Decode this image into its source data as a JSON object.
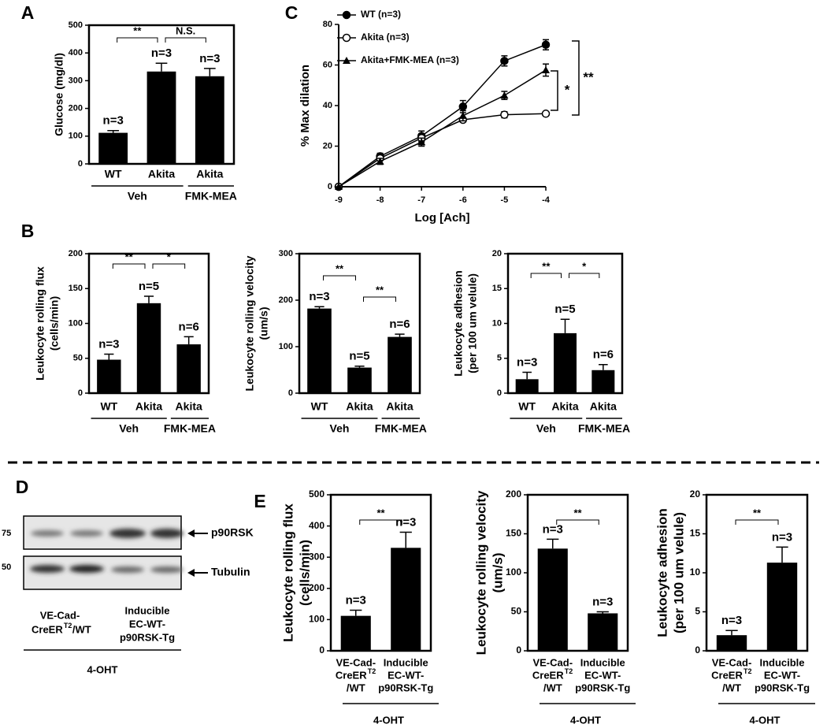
{
  "panels": [
    "A",
    "B",
    "C",
    "D",
    "E"
  ],
  "blot": {
    "markers": [
      75,
      50
    ],
    "bands": [
      "p90RSK",
      "Tubulin"
    ],
    "groups": [
      {
        "lines": [
          "VE-Cad-",
          "CreER"
        ],
        "superscript": "T2",
        "suffix": "/WT"
      },
      {
        "lines": [
          "Inducible",
          "EC-WT-",
          "p90RSK-Tg"
        ]
      }
    ],
    "treatment": "4-OHT"
  },
  "chart_data": [
    {
      "type": "bar",
      "ylabel": [
        "Glucose (mg/dl)"
      ],
      "categories": [
        "WT",
        "Akita",
        "Akita"
      ],
      "values": [
        112,
        333,
        316
      ],
      "errors": [
        8,
        30,
        28
      ],
      "n_labels": [
        "n=3",
        "n=3",
        "n=3"
      ],
      "color": "#000000",
      "ylim": [
        0,
        500
      ],
      "yticks": [
        0,
        100,
        200,
        300,
        400,
        500
      ],
      "groups": [
        "Veh",
        "FMK-MEA"
      ],
      "annotations": [
        "**",
        "N.S."
      ]
    },
    {
      "type": "line",
      "xlabel": "Log [Ach]",
      "ylabel": "% Max dilation",
      "x": [
        -9,
        -8,
        -7,
        -6,
        -5,
        -4
      ],
      "xlim": [
        -9,
        -4
      ],
      "xticks": [
        -9,
        -8,
        -7,
        -6,
        -5,
        -4
      ],
      "ylim": [
        0,
        80
      ],
      "yticks": [
        0,
        20,
        40,
        60,
        80
      ],
      "series": [
        {
          "name": "WT (n=3)",
          "color": "#000000",
          "marker": "circle",
          "values": [
            0,
            15,
            25,
            39.5,
            62,
            70
          ],
          "errors": [
            0,
            1.5,
            2.5,
            3,
            2.5,
            2.5
          ]
        },
        {
          "name": "Akita (n=3)",
          "color": "#000000",
          "marker": "open-circle",
          "values": [
            0,
            14,
            24,
            33,
            35.5,
            36
          ],
          "errors": [
            0,
            1,
            2,
            1,
            1.5,
            1
          ]
        },
        {
          "name": "Akita+FMK-MEA (n=3)",
          "color": "#000000",
          "marker": "triangle",
          "values": [
            0,
            12.5,
            22,
            35,
            45,
            57.5
          ],
          "errors": [
            0,
            1.5,
            2,
            2.5,
            2,
            3
          ]
        }
      ],
      "annotations": [
        "**",
        "*"
      ]
    },
    {
      "type": "bar",
      "ylabel": [
        "Leukocyte rolling flux",
        "(cells/min)"
      ],
      "categories": [
        "WT",
        "Akita",
        "Akita"
      ],
      "values": [
        48,
        129,
        70
      ],
      "errors": [
        8,
        10,
        11
      ],
      "n_labels": [
        "n=3",
        "n=5",
        "n=6"
      ],
      "color": "#000000",
      "ylim": [
        0,
        200
      ],
      "yticks": [
        0,
        50,
        100,
        150,
        200
      ],
      "groups": [
        "Veh",
        "FMK-MEA"
      ],
      "annotations": [
        "**",
        "*"
      ]
    },
    {
      "type": "bar",
      "ylabel": [
        "Leukocyte rolling velocity",
        "(um/s)"
      ],
      "categories": [
        "WT",
        "Akita",
        "Akita"
      ],
      "values": [
        182,
        55,
        121
      ],
      "errors": [
        4,
        3,
        6
      ],
      "n_labels": [
        "n=3",
        "n=5",
        "n=6"
      ],
      "color": "#000000",
      "ylim": [
        0,
        300
      ],
      "yticks": [
        0,
        100,
        200,
        300
      ],
      "groups": [
        "Veh",
        "FMK-MEA"
      ],
      "annotations": [
        "**",
        "**"
      ]
    },
    {
      "type": "bar",
      "ylabel": [
        "Leukocyte adhesion",
        "(per 100 um velule)"
      ],
      "categories": [
        "WT",
        "Akita",
        "Akita"
      ],
      "values": [
        2,
        8.6,
        3.3
      ],
      "errors": [
        1,
        2,
        0.8
      ],
      "n_labels": [
        "n=3",
        "n=5",
        "n=6"
      ],
      "color": "#000000",
      "ylim": [
        0,
        20
      ],
      "yticks": [
        0,
        5,
        10,
        15,
        20
      ],
      "groups": [
        "Veh",
        "FMK-MEA"
      ],
      "annotations": [
        "**",
        "*"
      ]
    },
    {
      "type": "bar",
      "ylabel": [
        "Leukocyte rolling flux",
        "(cells/min)"
      ],
      "categories": [
        {
          "lines": [
            "VE-Cad-",
            "CreER",
            "/WT"
          ],
          "superscript": "T2"
        },
        {
          "lines": [
            "Inducible",
            "EC-WT-",
            "p90RSK-Tg"
          ]
        }
      ],
      "values": [
        112,
        330
      ],
      "errors": [
        18,
        50
      ],
      "n_labels": [
        "n=3",
        "n=3"
      ],
      "color": "#000000",
      "ylim": [
        0,
        500
      ],
      "yticks": [
        0,
        100,
        200,
        300,
        400,
        500
      ],
      "group": "4-OHT",
      "annotations": [
        "**"
      ]
    },
    {
      "type": "bar",
      "ylabel": [
        "Leukocyte rolling velocity",
        "(um/s)"
      ],
      "categories": [
        {
          "lines": [
            "VE-Cad-",
            "CreER",
            "/WT"
          ],
          "superscript": "T2"
        },
        {
          "lines": [
            "Inducible",
            "EC-WT-",
            "p90RSK-Tg"
          ]
        }
      ],
      "values": [
        131,
        48
      ],
      "errors": [
        12,
        2
      ],
      "n_labels": [
        "n=3",
        "n=3"
      ],
      "color": "#000000",
      "ylim": [
        0,
        200
      ],
      "yticks": [
        0,
        50,
        100,
        150,
        200
      ],
      "group": "4-OHT",
      "annotations": [
        "**"
      ]
    },
    {
      "type": "bar",
      "ylabel": [
        "Leukocyte adhesion",
        "(per 100 um velule)"
      ],
      "categories": [
        {
          "lines": [
            "VE-Cad-",
            "CreER",
            "/WT"
          ],
          "superscript": "T2"
        },
        {
          "lines": [
            "Inducible",
            "EC-WT-",
            "p90RSK-Tg"
          ]
        }
      ],
      "values": [
        2,
        11.3
      ],
      "errors": [
        0.6,
        2
      ],
      "n_labels": [
        "n=3",
        "n=3"
      ],
      "color": "#000000",
      "ylim": [
        0,
        20
      ],
      "yticks": [
        0,
        5,
        10,
        15,
        20
      ],
      "group": "4-OHT",
      "annotations": [
        "**"
      ]
    }
  ]
}
